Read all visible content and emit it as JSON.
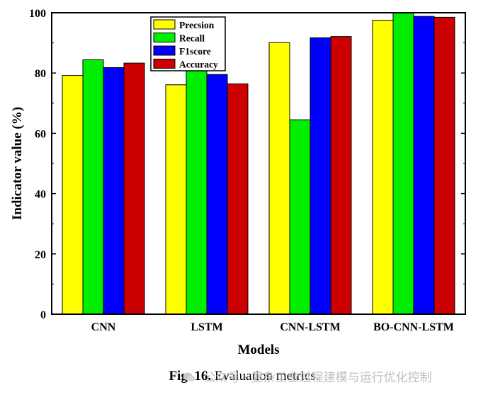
{
  "chart_data": {
    "type": "bar",
    "categories": [
      "CNN",
      "LSTM",
      "CNN-LSTM",
      "BO-CNN-LSTM"
    ],
    "series": [
      {
        "name": "Precsion",
        "color": "#ffff00",
        "values": [
          79.2,
          76.1,
          90.1,
          97.5
        ]
      },
      {
        "name": "Recall",
        "color": "#00ee00",
        "values": [
          84.4,
          81.0,
          64.5,
          99.9
        ]
      },
      {
        "name": "F1score",
        "color": "#0000ff",
        "values": [
          81.8,
          79.5,
          91.7,
          98.8
        ]
      },
      {
        "name": "Accuracy",
        "color": "#cc0000",
        "values": [
          83.3,
          76.4,
          92.1,
          98.5
        ]
      }
    ],
    "xlabel": "Models",
    "ylabel": "Indicator value (%)",
    "ylim": [
      0,
      100
    ],
    "yticks": [
      0,
      20,
      40,
      60,
      80,
      100
    ],
    "legend_position": "top-left-center",
    "grid": false
  },
  "caption": {
    "label": "Fig. 16.",
    "text": "Evaluation metrics."
  },
  "watermark": {
    "icon": "wechat-icon",
    "text": "公众号 · 复杂工业过程建模与运行优化控制"
  }
}
